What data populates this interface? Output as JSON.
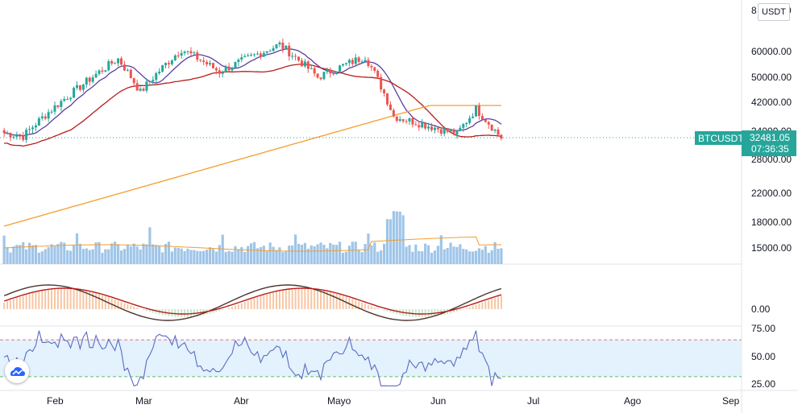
{
  "chart_data": {
    "type": "candlestick",
    "symbol": "BTCUSDT",
    "currency_button": "USDT",
    "last_price": "32481.05",
    "countdown": "07:36:35",
    "price_axis_ticks": [
      "60000.00",
      "50000.00",
      "42000.00",
      "34000.00",
      "28000.00",
      "22000.00",
      "18000.00",
      "15000.00"
    ],
    "price_axis_top_partial": "8",
    "price_axis_top_partial_right": "0",
    "oscillator_axis_ticks": [
      "0.00"
    ],
    "rsi_axis_ticks": [
      "75.00",
      "50.00",
      "25.00"
    ],
    "x_axis_labels": [
      "Feb",
      "Mar",
      "Abr",
      "Mayo",
      "Jun",
      "Jul",
      "Ago",
      "Sep"
    ],
    "price_ylim": [
      15000,
      80000
    ],
    "rsi_band": [
      30,
      70
    ],
    "key_closes": [
      {
        "date": "Jan 22",
        "value": 33000
      },
      {
        "date": "Feb 8",
        "value": 46000
      },
      {
        "date": "Feb 21",
        "value": 57000
      },
      {
        "date": "Feb 28",
        "value": 45000
      },
      {
        "date": "Mar 13",
        "value": 61000
      },
      {
        "date": "Mar 25",
        "value": 52000
      },
      {
        "date": "Apr 13",
        "value": 63000
      },
      {
        "date": "Apr 25",
        "value": 50000
      },
      {
        "date": "May 10",
        "value": 58000
      },
      {
        "date": "May 19",
        "value": 38000
      },
      {
        "date": "Jun 8",
        "value": 33500
      },
      {
        "date": "Jun 14",
        "value": 40000
      },
      {
        "date": "Jun 22",
        "value": 32481
      }
    ],
    "colors": {
      "up": "#26a69a",
      "down": "#ef5350",
      "ma_fast": "#5b3f9e",
      "ma_mid": "#b71c1c",
      "ma_slow": "#f59d2a",
      "volume": "#9fc5e8",
      "rsi_line": "#5c6bc0",
      "rsi_band_fill": "#e3f2fd",
      "price_tag": "#26a69a"
    }
  }
}
